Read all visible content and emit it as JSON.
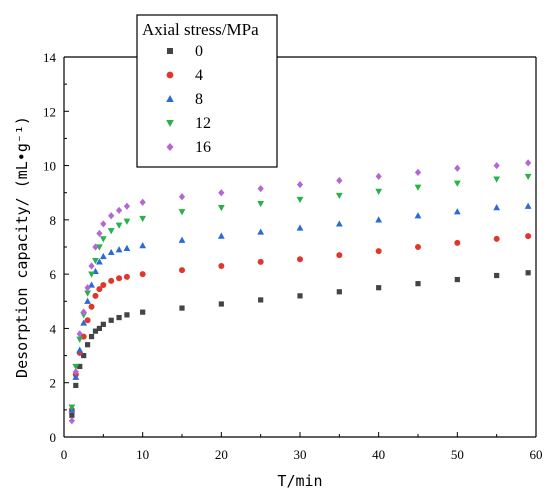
{
  "chart_data": {
    "type": "scatter",
    "xlabel": "T/min",
    "ylabel": "Desorption capacity/ (mL•g⁻¹)",
    "xlim": [
      0,
      60
    ],
    "ylim": [
      0,
      14
    ],
    "x_ticks": [
      "0",
      "10",
      "20",
      "30",
      "40",
      "50",
      "60"
    ],
    "y_ticks": [
      "0",
      "2",
      "4",
      "6",
      "8",
      "10",
      "12",
      "14"
    ],
    "grid": false,
    "legend": {
      "title": "Axial stress/MPa",
      "placement": "top-left"
    },
    "series": [
      {
        "name": "0",
        "color": "#444444",
        "marker": "square",
        "x": [
          1,
          1.5,
          2,
          2.5,
          3,
          3.5,
          4,
          4.5,
          5,
          6,
          7,
          8,
          10,
          15,
          20,
          25,
          30,
          35,
          40,
          45,
          50,
          55,
          59
        ],
        "y": [
          0.8,
          1.9,
          2.6,
          3.0,
          3.4,
          3.7,
          3.9,
          4.0,
          4.15,
          4.3,
          4.4,
          4.5,
          4.6,
          4.75,
          4.9,
          5.05,
          5.2,
          5.35,
          5.5,
          5.65,
          5.8,
          5.95,
          6.05
        ]
      },
      {
        "name": "4",
        "color": "#e0362c",
        "marker": "circle",
        "x": [
          1,
          1.5,
          2,
          2.5,
          3,
          3.5,
          4,
          4.5,
          5,
          6,
          7,
          8,
          10,
          15,
          20,
          25,
          30,
          35,
          40,
          45,
          50,
          55,
          59
        ],
        "y": [
          1.0,
          2.3,
          3.1,
          3.7,
          4.3,
          4.8,
          5.2,
          5.45,
          5.6,
          5.75,
          5.85,
          5.9,
          6.0,
          6.15,
          6.3,
          6.45,
          6.55,
          6.7,
          6.85,
          7.0,
          7.15,
          7.3,
          7.4
        ]
      },
      {
        "name": "8",
        "color": "#2a6bd6",
        "marker": "triangle-up",
        "x": [
          1,
          1.5,
          2,
          2.5,
          3,
          3.5,
          4,
          4.5,
          5,
          6,
          7,
          8,
          10,
          15,
          20,
          25,
          30,
          35,
          40,
          45,
          50,
          55,
          59
        ],
        "y": [
          1.0,
          2.2,
          3.2,
          4.2,
          5.0,
          5.6,
          6.1,
          6.45,
          6.65,
          6.8,
          6.9,
          6.95,
          7.05,
          7.25,
          7.4,
          7.55,
          7.7,
          7.85,
          8.0,
          8.15,
          8.3,
          8.45,
          8.5
        ]
      },
      {
        "name": "12",
        "color": "#27b34a",
        "marker": "triangle-down",
        "x": [
          1,
          1.5,
          2,
          2.5,
          3,
          3.5,
          4,
          4.5,
          5,
          6,
          7,
          8,
          10,
          15,
          20,
          25,
          30,
          35,
          40,
          45,
          50,
          55,
          59
        ],
        "y": [
          1.1,
          2.6,
          3.6,
          4.5,
          5.3,
          6.0,
          6.5,
          7.0,
          7.3,
          7.6,
          7.8,
          7.95,
          8.05,
          8.3,
          8.45,
          8.6,
          8.75,
          8.9,
          9.05,
          9.2,
          9.35,
          9.5,
          9.6
        ]
      },
      {
        "name": "16",
        "color": "#b565d8",
        "marker": "diamond",
        "x": [
          1,
          1.5,
          2,
          2.5,
          3,
          3.5,
          4,
          4.5,
          5,
          6,
          7,
          8,
          10,
          15,
          20,
          25,
          30,
          35,
          40,
          45,
          50,
          55,
          59
        ],
        "y": [
          0.6,
          2.4,
          3.8,
          4.6,
          5.5,
          6.3,
          7.0,
          7.5,
          7.85,
          8.15,
          8.35,
          8.5,
          8.65,
          8.85,
          9.0,
          9.15,
          9.3,
          9.45,
          9.6,
          9.75,
          9.9,
          10.0,
          10.1
        ]
      }
    ]
  }
}
